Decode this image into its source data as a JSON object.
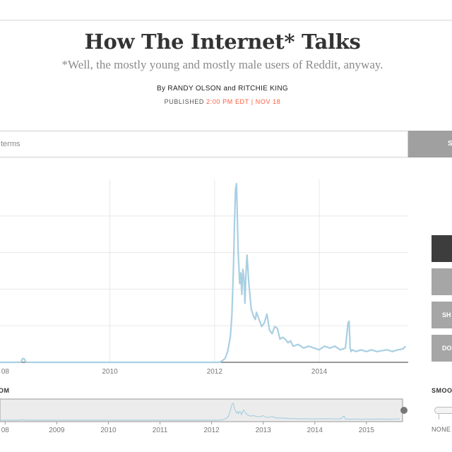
{
  "header": {
    "title": "How The Internet* Talks",
    "subtitle": "*Well, the mostly young and mostly male users of Reddit, anyway.",
    "byline_prefix": "By",
    "author1": "RANDY OLSON",
    "byline_and": "and",
    "author2": "RITCHIE KING",
    "published_label": "PUBLISHED",
    "published_time": "2:00 PM EDT",
    "published_sep": "|",
    "published_date": "NOV 18"
  },
  "search": {
    "placeholder": "terms",
    "button_label": "S"
  },
  "side_buttons": [
    {
      "label": ""
    },
    {
      "label": ""
    },
    {
      "label": "SH"
    },
    {
      "label": "DO"
    }
  ],
  "zoom_label": "OM",
  "smoothing": {
    "label": "SMOO",
    "value_label": "NONE"
  },
  "colors": {
    "line": "#a9cfe3",
    "accent": "#ff5b3a",
    "brush": "#ececec"
  },
  "chart_data": {
    "type": "line",
    "x_tick_labels": [
      "08",
      "2010",
      "2012",
      "2014"
    ],
    "x_range": [
      2007.9,
      2015.7
    ],
    "y_range": [
      0,
      1
    ],
    "grid": true,
    "series": [
      {
        "x": [
          2007.9,
          2008.3,
          2008.33,
          2008.36,
          2008.4,
          2012.0,
          2012.1,
          2012.15,
          2012.2,
          2012.25,
          2012.3,
          2012.33,
          2012.36,
          2012.38,
          2012.4,
          2012.42,
          2012.45,
          2012.48,
          2012.5,
          2012.52,
          2012.54,
          2012.56,
          2012.58,
          2012.6,
          2012.62,
          2012.65,
          2012.68,
          2012.7,
          2012.74,
          2012.78,
          2012.8,
          2012.85,
          2012.9,
          2012.95,
          2013.0,
          2013.05,
          2013.1,
          2013.15,
          2013.2,
          2013.25,
          2013.3,
          2013.35,
          2013.4,
          2013.45,
          2013.5,
          2013.6,
          2013.7,
          2013.8,
          2013.9,
          2014.0,
          2014.1,
          2014.2,
          2014.3,
          2014.4,
          2014.5,
          2014.55,
          2014.57,
          2014.59,
          2014.61,
          2014.63,
          2014.7,
          2014.8,
          2014.9,
          2015.0,
          2015.1,
          2015.2,
          2015.3,
          2015.4,
          2015.5,
          2015.6,
          2015.65
        ],
        "y": [
          0.0,
          0.0,
          0.02,
          0.02,
          0.0,
          0.0,
          0.0,
          0.01,
          0.02,
          0.06,
          0.14,
          0.26,
          0.52,
          0.78,
          0.97,
          1.0,
          0.62,
          0.44,
          0.5,
          0.38,
          0.52,
          0.48,
          0.33,
          0.5,
          0.6,
          0.46,
          0.36,
          0.3,
          0.26,
          0.24,
          0.28,
          0.24,
          0.2,
          0.22,
          0.27,
          0.18,
          0.16,
          0.2,
          0.19,
          0.13,
          0.14,
          0.13,
          0.11,
          0.12,
          0.09,
          0.1,
          0.08,
          0.09,
          0.08,
          0.07,
          0.09,
          0.08,
          0.09,
          0.07,
          0.08,
          0.22,
          0.23,
          0.08,
          0.06,
          0.07,
          0.06,
          0.07,
          0.06,
          0.07,
          0.06,
          0.065,
          0.07,
          0.06,
          0.07,
          0.075,
          0.09
        ]
      }
    ]
  },
  "overview_data": {
    "x_tick_labels": [
      "08",
      "2009",
      "2010",
      "2011",
      "2012",
      "2013",
      "2014",
      "2015"
    ]
  }
}
